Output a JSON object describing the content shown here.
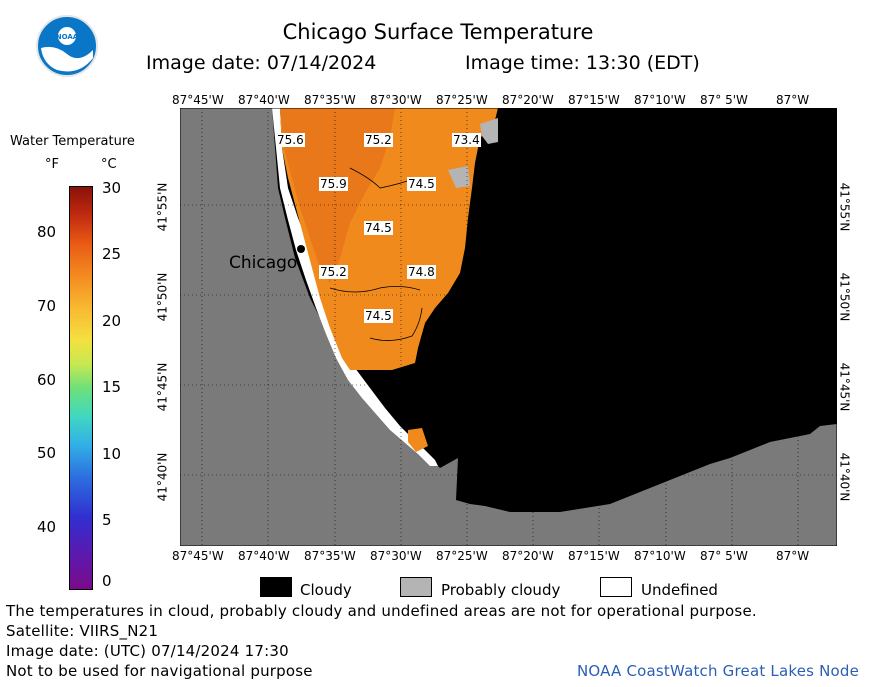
{
  "title": "Chicago Surface Temperature",
  "image_date_label": "Image date: 07/14/2024",
  "image_time_label": "Image time: 13:30 (EDT)",
  "legend": {
    "title": "Water Temperature",
    "unit_f": "°F",
    "unit_c": "°C",
    "f_ticks": [
      "40",
      "50",
      "60",
      "70",
      "80"
    ],
    "c_ticks": [
      "0",
      "5",
      "10",
      "15",
      "20",
      "25",
      "30"
    ]
  },
  "lon_labels": [
    "87°45'W",
    "87°40'W",
    "87°35'W",
    "87°30'W",
    "87°25'W",
    "87°20'W",
    "87°15'W",
    "87°10'W",
    "87° 5'W",
    "87°W"
  ],
  "lat_labels": [
    "41°55'N",
    "41°50'N",
    "41°45'N",
    "41°40'N"
  ],
  "city_label": "Chicago",
  "temperature_labels": [
    {
      "id": "t1",
      "value": "75.6"
    },
    {
      "id": "t2",
      "value": "75.2"
    },
    {
      "id": "t3",
      "value": "73.4"
    },
    {
      "id": "t4",
      "value": "75.9"
    },
    {
      "id": "t5",
      "value": "74.5"
    },
    {
      "id": "t6",
      "value": "74.5"
    },
    {
      "id": "t7",
      "value": "75.2"
    },
    {
      "id": "t8",
      "value": "74.8"
    },
    {
      "id": "t9",
      "value": "74.5"
    }
  ],
  "mask_legend": {
    "cloudy": "Cloudy",
    "probably_cloudy": "Probably cloudy",
    "undefined": "Undefined"
  },
  "colors": {
    "land": "#7a7a7a",
    "cloud": "#000000",
    "probably_cloudy": "#b4b4b4",
    "undefined": "#ffffff",
    "water_warm": "#f08a1c",
    "water_warmer": "#e8781a"
  },
  "footer": {
    "disclaimer": "The temperatures in cloud, probably cloudy and undefined areas are not for operational purpose.",
    "satellite": "Satellite: VIIRS_N21",
    "utc_date": "Image date: (UTC) 07/14/2024  17:30",
    "navigation": "Not to be used for navigational purpose",
    "credit": "NOAA CoastWatch Great Lakes Node"
  }
}
